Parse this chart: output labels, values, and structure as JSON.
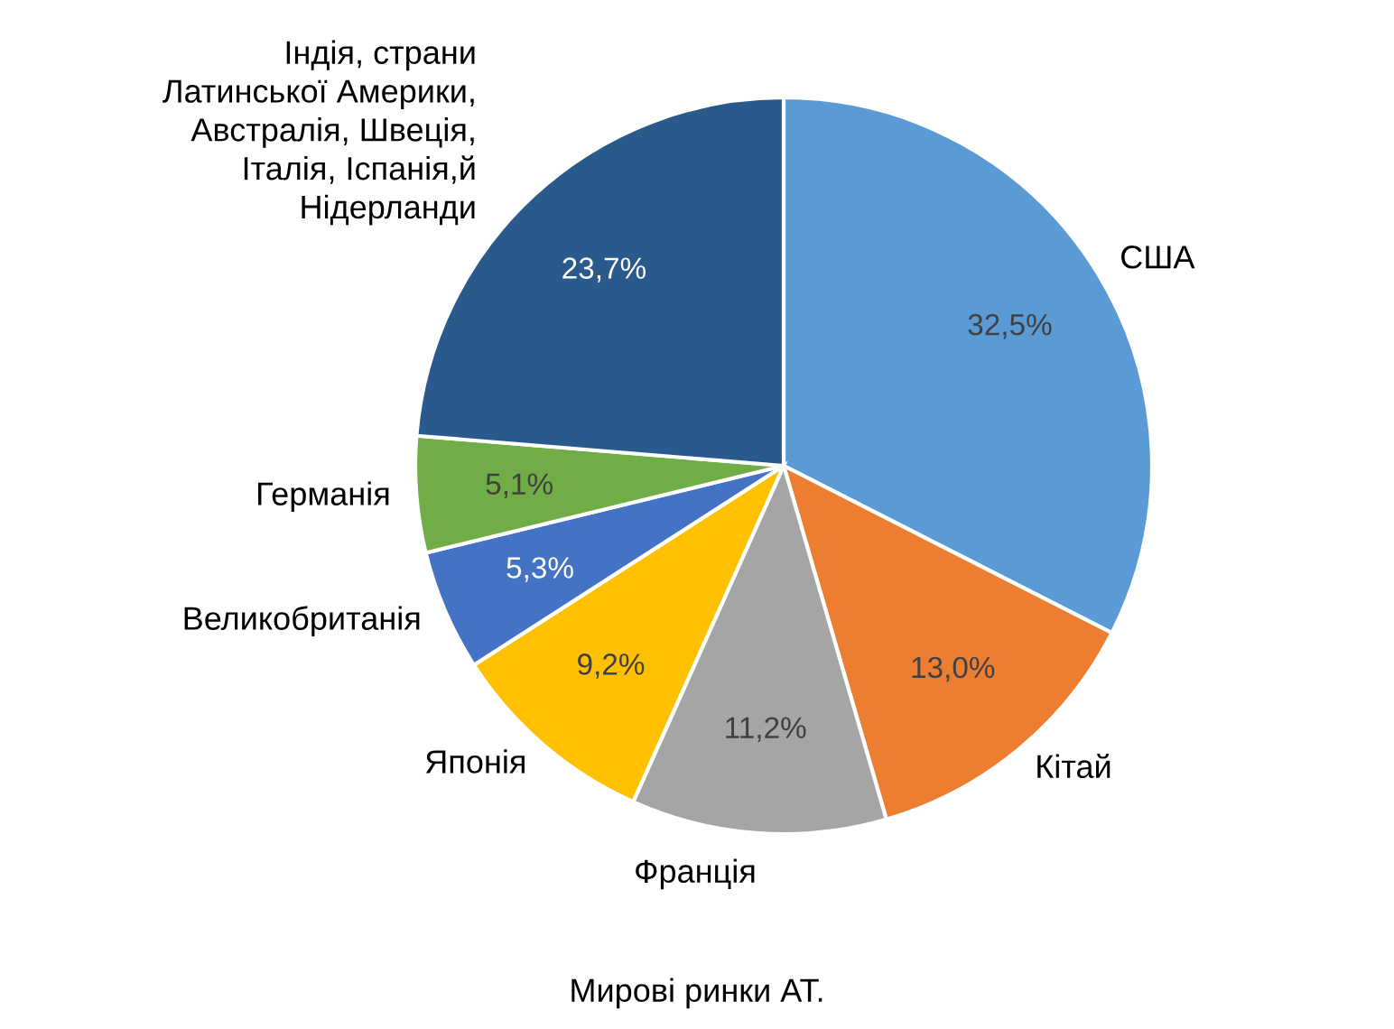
{
  "chart_data": {
    "type": "pie",
    "categories": [
      "США",
      "Кітай",
      "Франція",
      "Японія",
      "Великобританія",
      "Германія",
      "Індія, страни\nЛатинської Америки,\nАвстралія, Швеція,\nІталія, Іспанія,й\nНідерланди"
    ],
    "values": [
      32.5,
      13.0,
      11.2,
      9.2,
      5.3,
      5.1,
      23.7
    ],
    "colors": [
      "#5b9bd5",
      "#ed7d31",
      "#a5a5a5",
      "#ffc000",
      "#4472c4",
      "#70ad47",
      "#2a5a8c"
    ],
    "value_labels": [
      "32,5%",
      "13,0%",
      "11,2%",
      "9,2%",
      "5,3%",
      "5,1%",
      "23,7%"
    ],
    "annotations": [
      "Мирові ринки АТ."
    ]
  }
}
